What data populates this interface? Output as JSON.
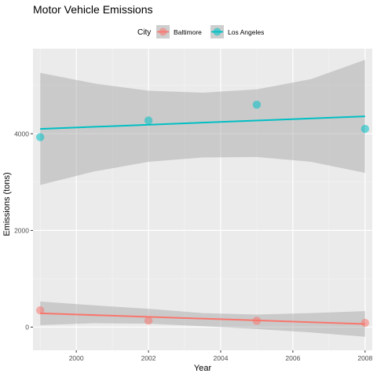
{
  "chart_data": {
    "type": "scatter",
    "title": "Motor Vehicle Emissions",
    "xlabel": "Year",
    "ylabel": "Emissions (tons)",
    "xlim": [
      1998.8,
      2008.2
    ],
    "ylim": [
      -480,
      5760
    ],
    "x_ticks": [
      2000,
      2002,
      2004,
      2006,
      2008
    ],
    "y_ticks": [
      0,
      2000,
      4000
    ],
    "grid": true,
    "legend": {
      "title": "City",
      "position": "top",
      "entries": [
        "Baltimore",
        "Los Angeles"
      ]
    },
    "series": [
      {
        "name": "Baltimore",
        "color": "#F8766D",
        "x": [
          1999,
          2002,
          2005,
          2008
        ],
        "y": [
          346.8,
          134.3,
          130.4,
          88.3
        ],
        "fit": {
          "x0": 1999,
          "y0": 285,
          "x1": 2008,
          "y1": 65
        },
        "band": {
          "x": [
            1999,
            2000.5,
            2002,
            2003.5,
            2005,
            2006.5,
            2008
          ],
          "lower": [
            40,
            80,
            70,
            20,
            -40,
            -110,
            -200
          ],
          "upper": [
            530,
            450,
            380,
            290,
            260,
            290,
            330
          ]
        }
      },
      {
        "name": "Los Angeles",
        "color": "#00BFC4",
        "x": [
          1999,
          2002,
          2005,
          2008
        ],
        "y": [
          3931.1,
          4274,
          4601.4,
          4101.3
        ],
        "fit": {
          "x0": 1999,
          "y0": 4100,
          "x1": 2008,
          "y1": 4360
        },
        "band": {
          "x": [
            1999,
            2000.5,
            2002,
            2003.5,
            2005,
            2006.5,
            2008
          ],
          "lower": [
            2940,
            3220,
            3420,
            3510,
            3520,
            3420,
            3190
          ],
          "upper": [
            5260,
            5040,
            4890,
            4850,
            4920,
            5130,
            5530
          ]
        }
      }
    ]
  }
}
